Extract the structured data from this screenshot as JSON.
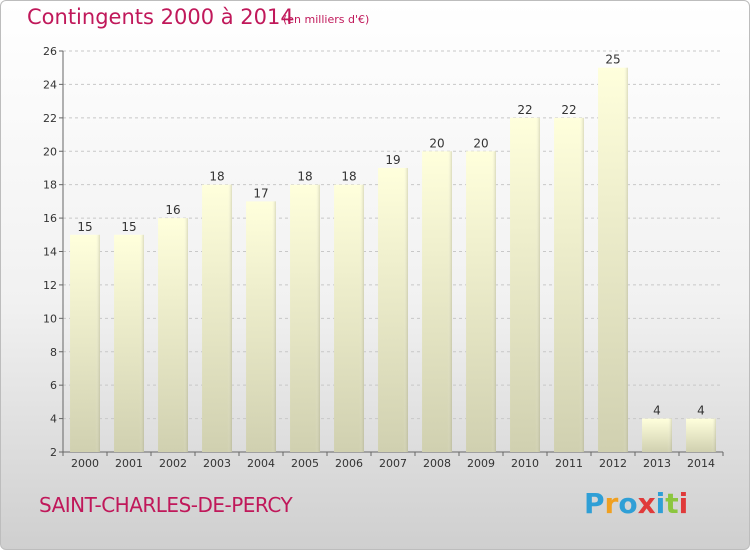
{
  "header": {
    "title": "Contingents 2000 à 2014",
    "subtitle": "(en milliers d'€)"
  },
  "footer": {
    "commune": "SAINT-CHARLES-DE-PERCY",
    "logo_text": "Proxiti"
  },
  "colors": {
    "title": "#c0185a",
    "bar_top": "#ffffdc",
    "bar_bottom": "#d0d0b0",
    "logo_letters": [
      "#2f9fd6",
      "#f0a020",
      "#2f9fd6",
      "#e03a3a",
      "#2f9fd6",
      "#8cc63f",
      "#e03a3a"
    ]
  },
  "chart_data": {
    "type": "bar",
    "title": "Contingents 2000 à 2014",
    "subtitle": "(en milliers d'€)",
    "categories": [
      "2000",
      "2001",
      "2002",
      "2003",
      "2004",
      "2005",
      "2006",
      "2007",
      "2008",
      "2009",
      "2010",
      "2011",
      "2012",
      "2013",
      "2014"
    ],
    "values": [
      15,
      15,
      16,
      18,
      17,
      18,
      18,
      19,
      20,
      20,
      22,
      22,
      25,
      4,
      4
    ],
    "ylim": [
      2,
      26
    ],
    "yticks": [
      2,
      4,
      6,
      8,
      10,
      12,
      14,
      16,
      18,
      20,
      22,
      24,
      26
    ],
    "xlabel": "",
    "ylabel": "",
    "grid": true,
    "legend": "none"
  }
}
